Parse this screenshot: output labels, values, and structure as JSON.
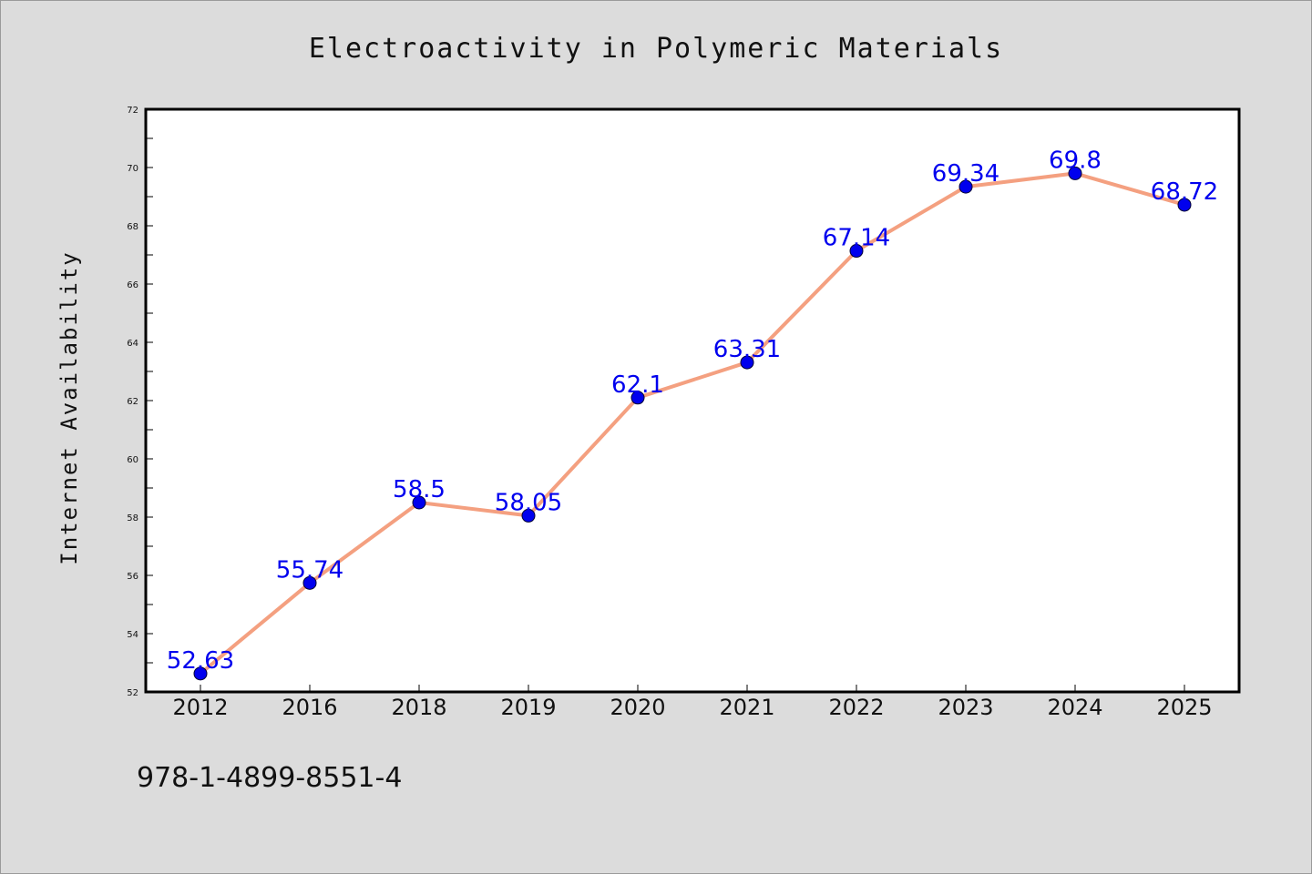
{
  "chart_data": {
    "type": "line",
    "title": "Electroactivity in Polymeric Materials",
    "xlabel": "",
    "ylabel": "Internet Availability",
    "categories": [
      "2012",
      "2016",
      "2018",
      "2019",
      "2020",
      "2021",
      "2022",
      "2023",
      "2024",
      "2025"
    ],
    "series": [
      {
        "values": [
          52.63,
          55.74,
          58.5,
          58.05,
          62.1,
          63.31,
          67.14,
          69.34,
          69.8,
          68.72
        ],
        "data_labels": [
          "52.63",
          "55.74",
          "58.5",
          "58.05",
          "62.1",
          "63.31",
          "67.14",
          "69.34",
          "69.8",
          "68.72"
        ]
      }
    ],
    "ylim": [
      52,
      72
    ],
    "yticks": [
      "52",
      "54",
      "56",
      "58",
      "60",
      "62",
      "64",
      "66",
      "68",
      "70",
      "72"
    ],
    "grid": false,
    "legend": "none",
    "colors": {
      "line": "#f4a080",
      "marker": "#0000ee",
      "data_label": "#0000ee",
      "plot_background": "#ffffff",
      "page_background": "#dcdcdc"
    }
  },
  "footer": {
    "isbn": "978-1-4899-8551-4"
  }
}
